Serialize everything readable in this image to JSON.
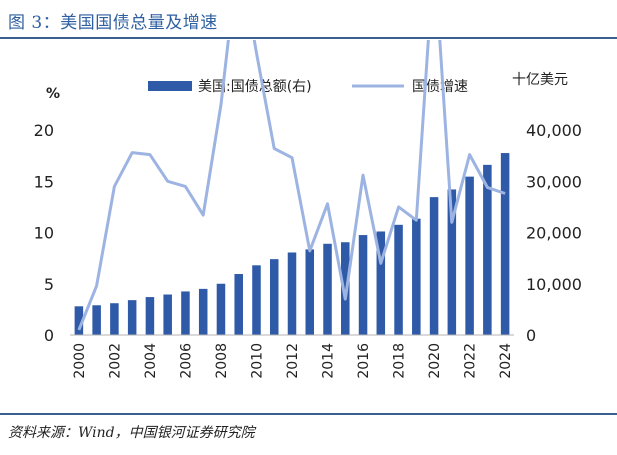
{
  "figure": {
    "title": "图 3：美国国债总量及增速",
    "source": "资料来源：Wind，中国银河证券研究院"
  },
  "chart_data": {
    "type": "bar+line",
    "categories": [
      2000,
      2001,
      2002,
      2003,
      2004,
      2005,
      2006,
      2007,
      2008,
      2009,
      2010,
      2011,
      2012,
      2013,
      2014,
      2015,
      2016,
      2017,
      2018,
      2019,
      2020,
      2021,
      2022,
      2023,
      2024
    ],
    "x_tick_labels": [
      "2000",
      "2002",
      "2004",
      "2006",
      "2008",
      "2010",
      "2012",
      "2014",
      "2016",
      "2018",
      "2020",
      "2022",
      "2024"
    ],
    "left_axis": {
      "label": "%",
      "ylim": [
        0,
        20
      ],
      "ticks": [
        "0",
        "5",
        "10",
        "15",
        "20"
      ]
    },
    "right_axis": {
      "label": "十亿美元",
      "ylim": [
        0,
        40000
      ],
      "ticks": [
        "0",
        "10,000",
        "20,000",
        "30,000",
        "40,000"
      ]
    },
    "series": [
      {
        "name": "美国:国债总额(右)",
        "kind": "bar",
        "axis": "right",
        "color": "#2f5aa8",
        "values": [
          5600,
          5800,
          6200,
          6800,
          7400,
          7900,
          8500,
          9000,
          10000,
          11900,
          13600,
          14800,
          16100,
          16700,
          17800,
          18100,
          19500,
          20200,
          21500,
          22700,
          26900,
          28400,
          30900,
          33200,
          35500
        ]
      },
      {
        "name": "国债增速",
        "kind": "line",
        "axis": "left",
        "color": "#9db4e3",
        "values": [
          0.5,
          4.8,
          14.5,
          17.8,
          17.6,
          15.0,
          14.5,
          11.7,
          22.5,
          37.6,
          27.5,
          18.2,
          17.3,
          8.2,
          12.8,
          3.5,
          15.6,
          7.0,
          12.5,
          11.2,
          37.2,
          11.0,
          17.6,
          14.4,
          13.8
        ]
      }
    ],
    "legend_position": "top",
    "grid": false
  }
}
